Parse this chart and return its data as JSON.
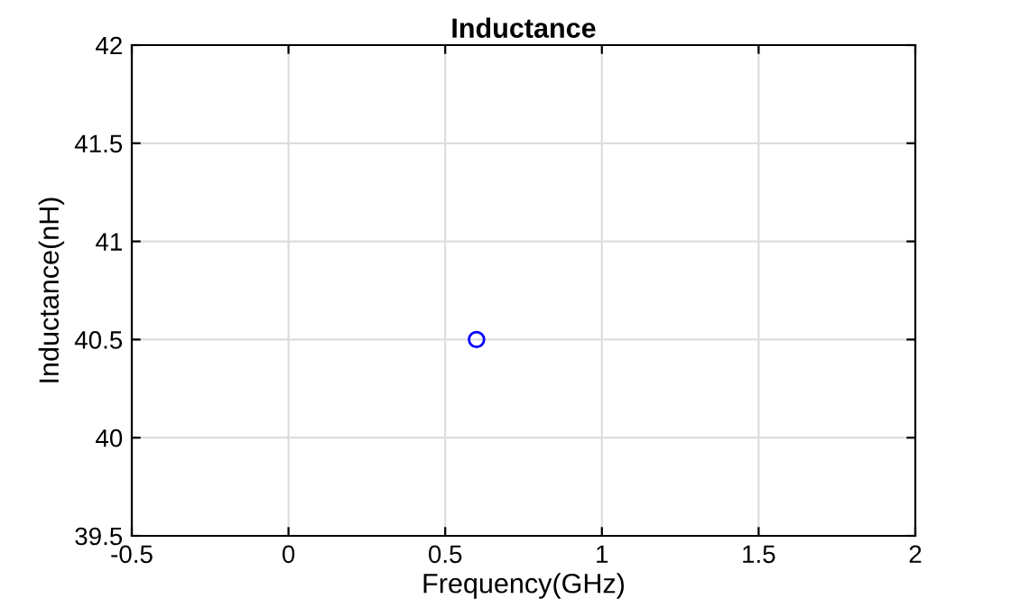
{
  "chart_data": {
    "type": "scatter",
    "title": "Inductance",
    "xlabel": "Frequency(GHz)",
    "ylabel": "Inductance(nH)",
    "x": [
      0.6
    ],
    "series": [
      {
        "color": "#0000ff",
        "values": [
          40.5
        ]
      }
    ],
    "marker": "circle",
    "xlim": [
      -0.5,
      2
    ],
    "xticks": [
      -0.5,
      0,
      0.5,
      1,
      1.5,
      2
    ],
    "ylim": [
      39.5,
      42
    ],
    "yticks": [
      39.5,
      40,
      40.5,
      41,
      41.5,
      42
    ],
    "grid": true
  }
}
